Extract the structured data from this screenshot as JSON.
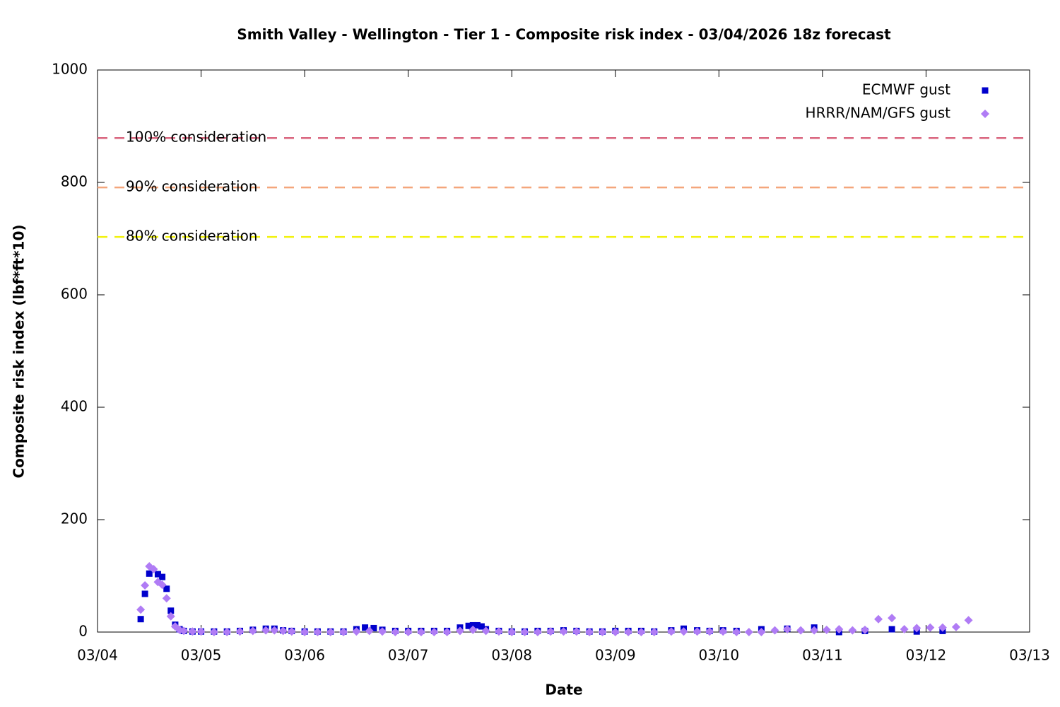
{
  "chart_data": {
    "type": "scatter",
    "title": "Smith Valley - Wellington - Tier 1 - Composite risk index - 03/04/2026 18z forecast",
    "x_label": "Date",
    "y_label": "Composite risk index (lbf*ft*10)",
    "xlim": [
      0,
      9
    ],
    "xticks": [
      {
        "value": 0,
        "label": "03/04"
      },
      {
        "value": 1,
        "label": "03/05"
      },
      {
        "value": 2,
        "label": "03/06"
      },
      {
        "value": 3,
        "label": "03/07"
      },
      {
        "value": 4,
        "label": "03/08"
      },
      {
        "value": 5,
        "label": "03/09"
      },
      {
        "value": 6,
        "label": "03/10"
      },
      {
        "value": 7,
        "label": "03/11"
      },
      {
        "value": 8,
        "label": "03/12"
      },
      {
        "value": 9,
        "label": "03/13"
      }
    ],
    "ylim": [
      0,
      1000
    ],
    "yticks": [
      0,
      200,
      400,
      600,
      800,
      1000
    ],
    "legend": "top-right",
    "reference_lines": [
      {
        "value": 879,
        "label": "100% consideration",
        "color": "#d9667f"
      },
      {
        "value": 791,
        "label": "90% consideration",
        "color": "#f4a67c"
      },
      {
        "value": 703,
        "label": "80% consideration",
        "color": "#f2f20f"
      }
    ],
    "series": [
      {
        "name": "ECMWF gust",
        "color": "#0000cc",
        "marker": "square",
        "x": [
          0.417,
          0.458,
          0.5,
          0.583,
          0.625,
          0.667,
          0.708,
          0.75,
          0.792,
          0.833,
          0.917,
          1.0,
          1.125,
          1.25,
          1.375,
          1.5,
          1.625,
          1.708,
          1.792,
          1.875,
          2.0,
          2.125,
          2.25,
          2.375,
          2.5,
          2.583,
          2.667,
          2.75,
          2.875,
          3.0,
          3.125,
          3.25,
          3.375,
          3.5,
          3.583,
          3.625,
          3.667,
          3.708,
          3.75,
          3.875,
          4.0,
          4.125,
          4.25,
          4.375,
          4.5,
          4.625,
          4.75,
          4.875,
          5.0,
          5.125,
          5.25,
          5.375,
          5.54,
          5.66,
          5.79,
          5.91,
          6.04,
          6.17,
          6.41,
          6.66,
          6.92,
          7.16,
          7.41,
          7.67,
          7.91,
          8.16
        ],
        "values": [
          23,
          68,
          104,
          103,
          98,
          77,
          38,
          13,
          5,
          2,
          1,
          1,
          1,
          1,
          2,
          4,
          6,
          6,
          3,
          2,
          1,
          1,
          1,
          1,
          5,
          8,
          7,
          4,
          2,
          2,
          2,
          2,
          2,
          8,
          11,
          12,
          12,
          10,
          5,
          2,
          1,
          1,
          2,
          2,
          3,
          2,
          1,
          1,
          2,
          2,
          2,
          1,
          3,
          6,
          3,
          2,
          3,
          2,
          5,
          6,
          8,
          0,
          2,
          5,
          1,
          2
        ]
      },
      {
        "name": "HRRR/NAM/GFS gust",
        "color": "#b07cf5",
        "marker": "diamond",
        "x": [
          0.417,
          0.458,
          0.5,
          0.542,
          0.583,
          0.625,
          0.667,
          0.708,
          0.75,
          0.792,
          0.833,
          0.917,
          1.0,
          1.125,
          1.25,
          1.375,
          1.5,
          1.625,
          1.708,
          1.792,
          1.875,
          2.0,
          2.125,
          2.25,
          2.375,
          2.5,
          2.625,
          2.75,
          2.875,
          3.0,
          3.125,
          3.25,
          3.375,
          3.5,
          3.625,
          3.75,
          3.875,
          4.0,
          4.125,
          4.25,
          4.375,
          4.5,
          4.625,
          4.75,
          4.875,
          5.0,
          5.125,
          5.25,
          5.375,
          5.54,
          5.66,
          5.79,
          5.91,
          6.04,
          6.17,
          6.29,
          6.41,
          6.54,
          6.66,
          6.79,
          6.92,
          7.04,
          7.16,
          7.29,
          7.41,
          7.54,
          7.67,
          7.79,
          7.91,
          8.04,
          8.16,
          8.29,
          8.41
        ],
        "values": [
          40,
          83,
          117,
          112,
          89,
          84,
          60,
          28,
          10,
          4,
          2,
          1,
          1,
          0,
          0,
          1,
          2,
          3,
          3,
          2,
          1,
          0,
          0,
          0,
          0,
          1,
          2,
          1,
          0,
          0,
          0,
          0,
          0,
          2,
          4,
          2,
          1,
          0,
          0,
          0,
          1,
          1,
          1,
          0,
          0,
          0,
          0,
          0,
          0,
          1,
          1,
          1,
          1,
          1,
          0,
          0,
          0,
          3,
          5,
          3,
          3,
          4,
          5,
          3,
          4,
          23,
          25,
          5,
          7,
          8,
          8,
          9,
          21
        ]
      }
    ]
  }
}
